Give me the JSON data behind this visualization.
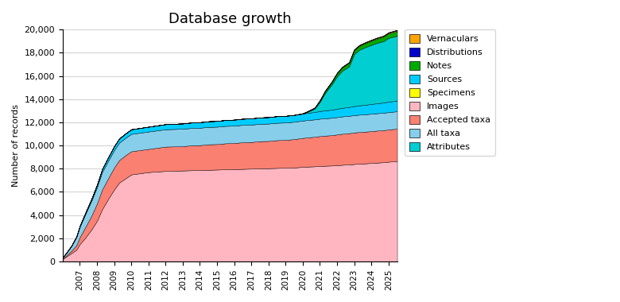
{
  "title": "Database growth",
  "ylabel": "Number of records",
  "ylim": [
    0,
    20000
  ],
  "yticks": [
    0,
    2000,
    4000,
    6000,
    8000,
    10000,
    12000,
    14000,
    16000,
    18000,
    20000
  ],
  "colors": {
    "Vernaculars": "#FFA500",
    "Distributions": "#0000CD",
    "Notes": "#00AA00",
    "Sources": "#00CCFF",
    "Specimens": "#FFFF00",
    "Images": "#FFB6C1",
    "Accepted taxa": "#FA8072",
    "All taxa": "#87CEEB",
    "Attributes": "#00CED1"
  },
  "legend_order": [
    "Vernaculars",
    "Distributions",
    "Notes",
    "Sources",
    "Specimens",
    "Images",
    "Accepted taxa",
    "All taxa",
    "Attributes"
  ],
  "stack_order": [
    "Images",
    "Accepted taxa",
    "All taxa",
    "Sources",
    "Attributes",
    "Notes",
    "Specimens",
    "Distributions",
    "Vernaculars"
  ],
  "years": [
    2006.0,
    2006.2,
    2006.5,
    2006.8,
    2007.0,
    2007.3,
    2007.7,
    2008.0,
    2008.3,
    2008.7,
    2009.0,
    2009.3,
    2009.7,
    2010.0,
    2010.5,
    2011.0,
    2011.5,
    2012.0,
    2012.5,
    2013.0,
    2013.5,
    2014.0,
    2014.5,
    2015.0,
    2015.5,
    2016.0,
    2016.5,
    2017.0,
    2017.5,
    2018.0,
    2018.5,
    2019.0,
    2019.5,
    2020.0,
    2020.3,
    2020.7,
    2021.0,
    2021.3,
    2021.7,
    2022.0,
    2022.3,
    2022.7,
    2023.0,
    2023.3,
    2023.7,
    2024.0,
    2024.3,
    2024.7,
    2025.0,
    2025.5
  ],
  "data": {
    "Images": [
      200,
      400,
      700,
      1000,
      1500,
      2000,
      2800,
      3500,
      4500,
      5500,
      6200,
      6800,
      7200,
      7500,
      7600,
      7700,
      7750,
      7800,
      7820,
      7840,
      7860,
      7880,
      7900,
      7920,
      7940,
      7960,
      7980,
      8000,
      8020,
      8040,
      8060,
      8080,
      8100,
      8150,
      8180,
      8200,
      8230,
      8250,
      8270,
      8300,
      8330,
      8360,
      8400,
      8430,
      8460,
      8490,
      8520,
      8550,
      8600,
      8650
    ],
    "Accepted taxa": [
      50,
      100,
      200,
      400,
      600,
      900,
      1200,
      1500,
      1700,
      1800,
      1900,
      1950,
      2000,
      2000,
      2000,
      2000,
      2050,
      2100,
      2100,
      2100,
      2150,
      2150,
      2200,
      2200,
      2250,
      2250,
      2300,
      2300,
      2350,
      2350,
      2400,
      2400,
      2450,
      2500,
      2520,
      2550,
      2580,
      2600,
      2620,
      2650,
      2680,
      2700,
      2720,
      2730,
      2740,
      2750,
      2760,
      2770,
      2780,
      2800
    ],
    "All taxa": [
      100,
      200,
      400,
      700,
      900,
      1100,
      1300,
      1400,
      1500,
      1500,
      1500,
      1500,
      1500,
      1500,
      1500,
      1500,
      1500,
      1500,
      1500,
      1500,
      1500,
      1500,
      1500,
      1500,
      1500,
      1500,
      1500,
      1500,
      1500,
      1500,
      1500,
      1500,
      1500,
      1500,
      1500,
      1500,
      1500,
      1500,
      1500,
      1500,
      1500,
      1500,
      1500,
      1500,
      1500,
      1500,
      1500,
      1500,
      1500,
      1500
    ],
    "Sources": [
      10,
      20,
      30,
      50,
      80,
      120,
      180,
      220,
      270,
      310,
      340,
      360,
      380,
      400,
      410,
      420,
      430,
      440,
      450,
      460,
      470,
      480,
      490,
      500,
      510,
      520,
      530,
      540,
      550,
      560,
      570,
      580,
      590,
      600,
      620,
      640,
      660,
      680,
      700,
      720,
      740,
      760,
      780,
      800,
      820,
      840,
      860,
      880,
      900,
      920
    ],
    "Attributes": [
      0,
      0,
      0,
      0,
      0,
      0,
      0,
      0,
      0,
      0,
      0,
      0,
      0,
      0,
      0,
      0,
      0,
      0,
      0,
      0,
      0,
      0,
      0,
      0,
      0,
      0,
      0,
      0,
      0,
      0,
      0,
      0,
      0,
      0,
      100,
      300,
      800,
      1500,
      2200,
      2800,
      3200,
      3500,
      4500,
      4800,
      5000,
      5100,
      5200,
      5300,
      5500,
      5600
    ],
    "Notes": [
      0,
      0,
      0,
      0,
      0,
      0,
      0,
      0,
      0,
      0,
      0,
      0,
      0,
      0,
      0,
      0,
      0,
      0,
      0,
      0,
      0,
      0,
      0,
      0,
      0,
      0,
      0,
      0,
      0,
      0,
      0,
      0,
      0,
      0,
      20,
      50,
      100,
      150,
      200,
      250,
      280,
      300,
      320,
      330,
      340,
      350,
      360,
      370,
      380,
      390
    ],
    "Specimens": [
      0,
      0,
      0,
      0,
      0,
      0,
      0,
      0,
      0,
      0,
      0,
      0,
      0,
      0,
      0,
      0,
      0,
      0,
      0,
      0,
      0,
      0,
      0,
      0,
      0,
      0,
      0,
      0,
      0,
      0,
      0,
      0,
      0,
      30,
      32,
      35,
      38,
      40,
      42,
      45,
      47,
      50,
      52,
      54,
      56,
      58,
      60,
      62,
      65,
      68
    ],
    "Distributions": [
      0,
      0,
      0,
      0,
      0,
      0,
      0,
      0,
      0,
      0,
      0,
      0,
      0,
      0,
      0,
      0,
      0,
      0,
      0,
      0,
      0,
      0,
      0,
      0,
      0,
      0,
      0,
      0,
      0,
      0,
      0,
      0,
      0,
      5,
      6,
      8,
      10,
      12,
      14,
      16,
      18,
      20,
      22,
      24,
      26,
      28,
      30,
      32,
      34,
      36
    ],
    "Vernaculars": [
      0,
      0,
      0,
      0,
      0,
      0,
      0,
      0,
      0,
      0,
      0,
      0,
      0,
      0,
      0,
      0,
      0,
      0,
      0,
      0,
      0,
      0,
      0,
      0,
      0,
      0,
      0,
      0,
      0,
      0,
      0,
      0,
      0,
      2,
      3,
      4,
      5,
      6,
      7,
      8,
      9,
      10,
      11,
      12,
      13,
      14,
      15,
      16,
      17,
      18
    ]
  }
}
